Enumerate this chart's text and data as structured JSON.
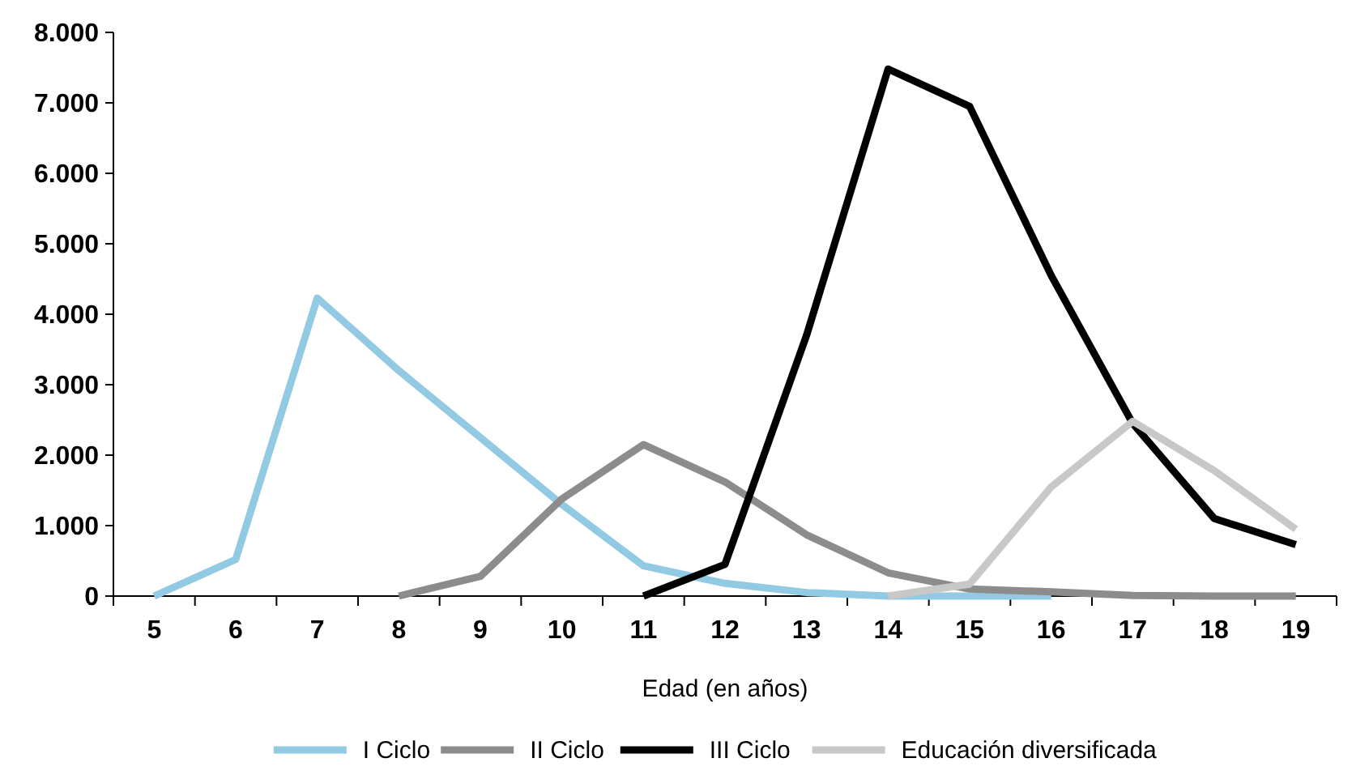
{
  "chart_data": {
    "type": "line",
    "xlabel": "Edad (en años)",
    "categories": [
      "5",
      "6",
      "7",
      "8",
      "9",
      "10",
      "11",
      "12",
      "13",
      "14",
      "15",
      "16",
      "17",
      "18",
      "19"
    ],
    "series": [
      {
        "name": "I Ciclo",
        "color": "#92cae3",
        "values": [
          0,
          520,
          4230,
          3200,
          2250,
          1300,
          430,
          180,
          50,
          0,
          0,
          0,
          null,
          null,
          null
        ]
      },
      {
        "name": "II Ciclo",
        "color": "#8c8c8c",
        "values": [
          null,
          null,
          null,
          0,
          280,
          1380,
          2150,
          1620,
          870,
          330,
          100,
          60,
          10,
          0,
          0
        ]
      },
      {
        "name": "III Ciclo",
        "color": "#000000",
        "values": [
          null,
          null,
          null,
          null,
          null,
          null,
          0,
          450,
          3700,
          7480,
          6950,
          4550,
          2450,
          1100,
          730
        ]
      },
      {
        "name": "Educación diversificada",
        "color": "#c8c8c8",
        "values": [
          null,
          null,
          null,
          null,
          null,
          null,
          null,
          null,
          null,
          0,
          170,
          1550,
          2480,
          1780,
          950
        ]
      }
    ],
    "ylim": [
      0,
      8000
    ],
    "yticks": [
      {
        "value": 0,
        "label": "0"
      },
      {
        "value": 1000,
        "label": "1.000"
      },
      {
        "value": 2000,
        "label": "2.000"
      },
      {
        "value": 3000,
        "label": "3.000"
      },
      {
        "value": 4000,
        "label": "4.000"
      },
      {
        "value": 5000,
        "label": "5.000"
      },
      {
        "value": 6000,
        "label": "6.000"
      },
      {
        "value": 7000,
        "label": "7.000"
      },
      {
        "value": 8000,
        "label": "8.000"
      }
    ],
    "legend": "bottom",
    "line_style": "solid"
  }
}
